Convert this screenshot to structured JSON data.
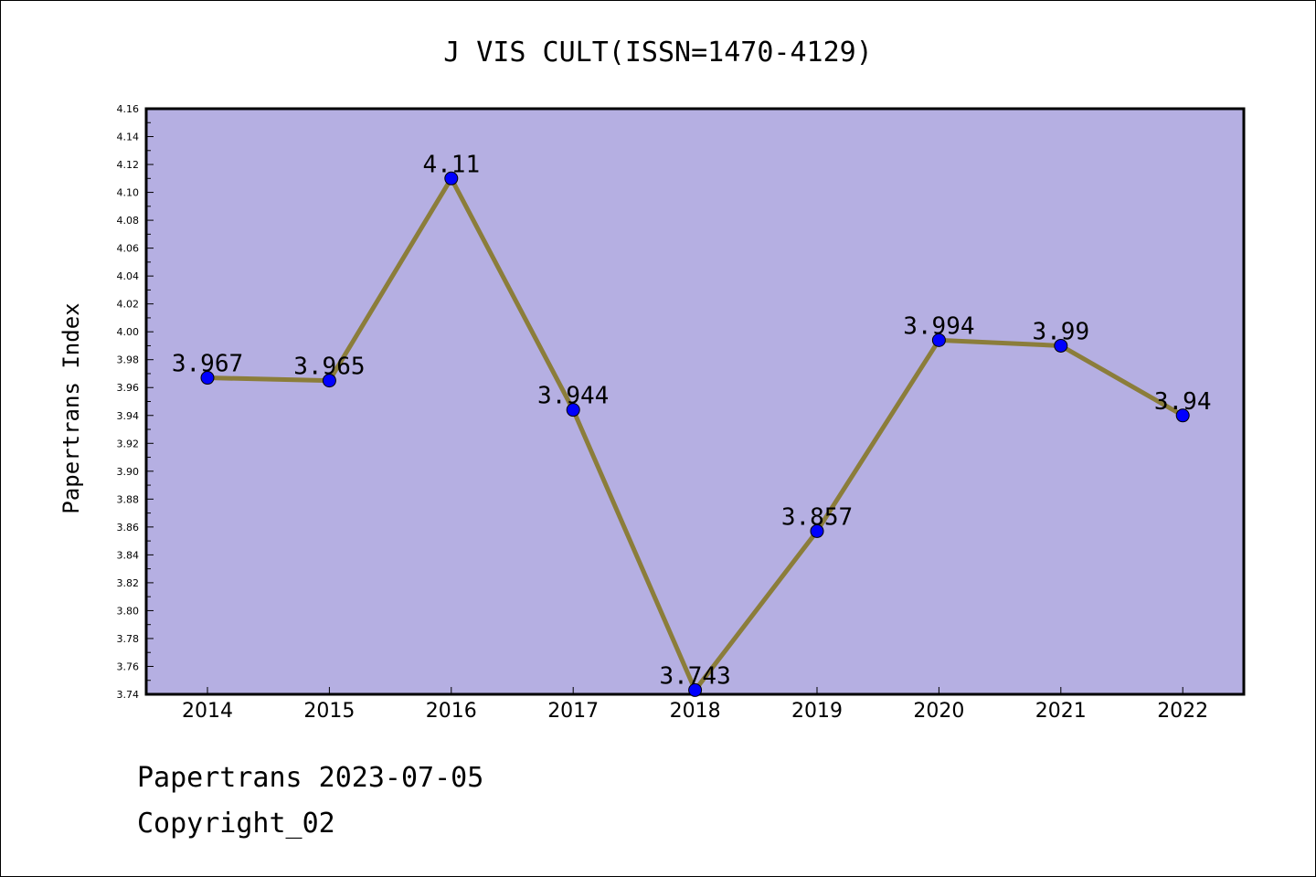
{
  "chart_data": {
    "type": "line",
    "title": "J VIS CULT(ISSN=1470-4129)",
    "xlabel": "",
    "ylabel": "Papertrans Index",
    "categories": [
      "2014",
      "2015",
      "2016",
      "2017",
      "2018",
      "2019",
      "2020",
      "2021",
      "2022"
    ],
    "values": [
      3.967,
      3.965,
      4.11,
      3.944,
      3.743,
      3.857,
      3.994,
      3.99,
      3.94
    ],
    "value_labels": [
      "3.967",
      "3.965",
      "4.11",
      "3.944",
      "3.743",
      "3.857",
      "3.994",
      "3.99",
      "3.94"
    ],
    "ylim": [
      3.74,
      4.16
    ],
    "yticks": [
      "3.74",
      "3.76",
      "3.78",
      "3.80",
      "3.82",
      "3.84",
      "3.86",
      "3.88",
      "3.90",
      "3.92",
      "3.94",
      "3.96",
      "3.98",
      "4.00",
      "4.02",
      "4.04",
      "4.06",
      "4.08",
      "4.10",
      "4.12",
      "4.14",
      "4.16"
    ],
    "grid": false,
    "legend": "none",
    "colors": {
      "plot_background": "#b5afe2",
      "line": "#8b7d3a",
      "marker": "#0000ff"
    }
  },
  "footer": {
    "date_line": "Papertrans 2023-07-05",
    "copyright": "Copyright_02"
  }
}
